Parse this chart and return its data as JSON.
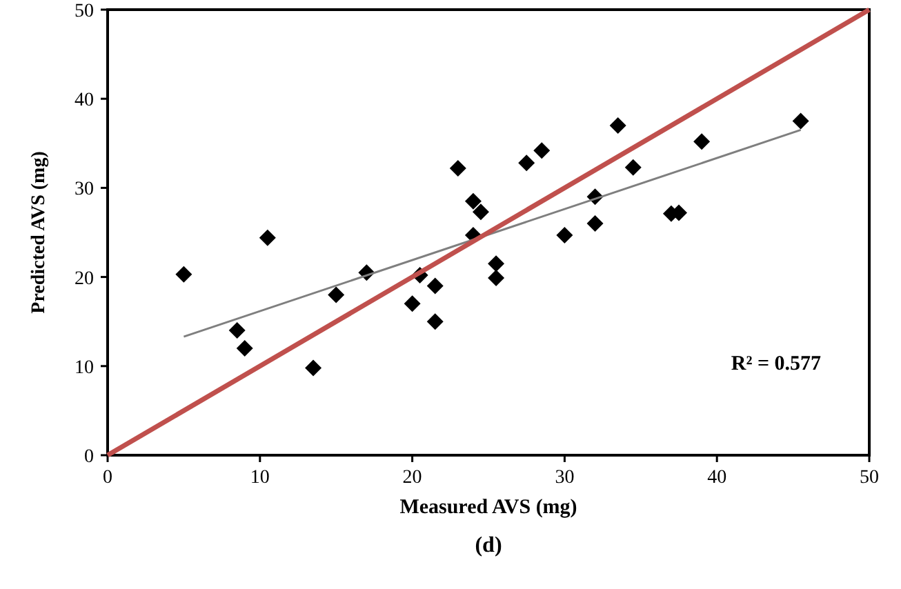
{
  "chart_data": {
    "type": "scatter",
    "xlabel": "Measured AVS (mg)",
    "ylabel": "Predicted AVS (mg)",
    "xlim": [
      0,
      50
    ],
    "ylim": [
      0,
      50
    ],
    "xticks": [
      0,
      10,
      20,
      30,
      40,
      50
    ],
    "yticks": [
      0,
      10,
      20,
      30,
      40,
      50
    ],
    "grid": false,
    "marker": "diamond",
    "series": [
      {
        "color": "#000000",
        "x": [
          5,
          8.5,
          9,
          10.5,
          13.5,
          15,
          17,
          20,
          20.5,
          21.5,
          21.5,
          23,
          24,
          24.5,
          24,
          25.5,
          25.5,
          27.5,
          28.5,
          30,
          32,
          32,
          33.5,
          34.5,
          37,
          37.5,
          39,
          45.5
        ],
        "values": [
          20.3,
          14,
          12,
          24.4,
          9.8,
          18,
          20.5,
          17,
          20.2,
          19,
          15,
          32.2,
          28.5,
          27.3,
          24.7,
          21.5,
          19.9,
          32.8,
          34.2,
          24.7,
          29,
          26,
          37,
          32.3,
          27.1,
          27.2,
          35.2,
          37.5
        ]
      },
      {
        "type": "line",
        "color": "#7f7f7f",
        "marker": "none",
        "x": [
          5,
          45.5
        ],
        "values": [
          13.3,
          36.5
        ]
      },
      {
        "type": "line",
        "color": "#c0504d",
        "marker": "none",
        "x": [
          0,
          50
        ],
        "values": [
          0,
          50
        ]
      }
    ],
    "annotations": [
      "R² = 0.577",
      "(d)"
    ]
  }
}
